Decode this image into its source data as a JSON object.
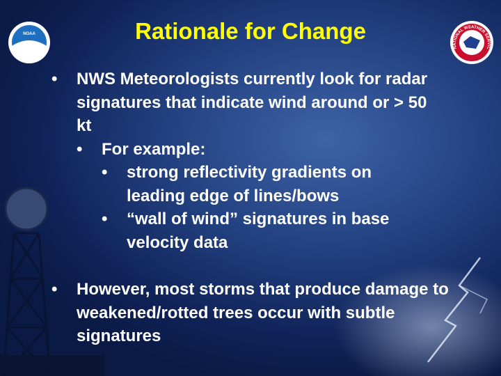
{
  "title": "Rationale for Change",
  "logos": {
    "left": "NOAA",
    "right": "NATIONAL WEATHER SERVICE"
  },
  "bullets": [
    {
      "text": "NWS Meteorologists currently look for radar signatures that indicate wind around or > 50 kt",
      "children": [
        {
          "text": "For example:",
          "children": [
            {
              "text": "strong reflectivity gradients on leading edge of lines/bows"
            },
            {
              "text": "“wall of wind” signatures in base velocity data"
            }
          ]
        }
      ]
    },
    {
      "text": "However, most storms that produce damage to weakened/rotted trees occur with subtle signatures"
    }
  ]
}
